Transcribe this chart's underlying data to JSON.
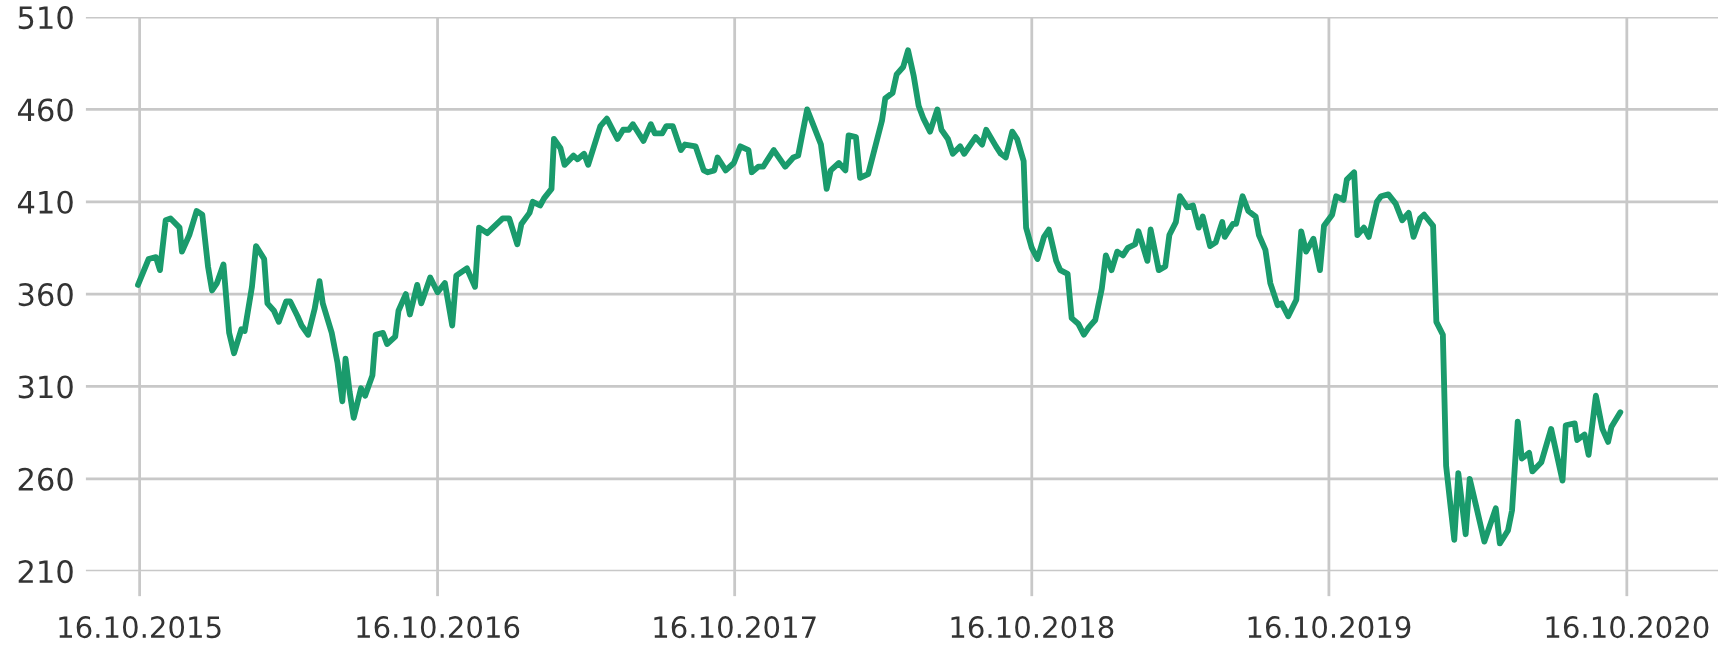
{
  "chart_data": {
    "type": "line",
    "x": [
      "2015-10-14",
      "2015-10-27",
      "2015-11-05",
      "2015-11-10",
      "2015-11-17",
      "2015-11-23",
      "2015-12-04",
      "2015-12-07",
      "2015-12-16",
      "2015-12-25",
      "2016-01-01",
      "2016-01-08",
      "2016-01-13",
      "2016-01-19",
      "2016-01-27",
      "2016-02-03",
      "2016-02-09",
      "2016-02-18",
      "2016-02-22",
      "2016-03-02",
      "2016-03-07",
      "2016-03-17",
      "2016-03-21",
      "2016-03-29",
      "2016-04-04",
      "2016-04-13",
      "2016-04-18",
      "2016-04-27",
      "2016-05-02",
      "2016-05-10",
      "2016-05-18",
      "2016-05-24",
      "2016-05-28",
      "2016-06-08",
      "2016-06-15",
      "2016-06-21",
      "2016-06-25",
      "2016-06-30",
      "2016-07-05",
      "2016-07-14",
      "2016-07-19",
      "2016-07-28",
      "2016-08-01",
      "2016-08-10",
      "2016-08-15",
      "2016-08-25",
      "2016-08-29",
      "2016-09-07",
      "2016-09-12",
      "2016-09-21",
      "2016-09-26",
      "2016-10-07",
      "2016-10-16",
      "2016-10-25",
      "2016-11-03",
      "2016-11-08",
      "2016-11-21",
      "2016-12-01",
      "2016-12-06",
      "2016-12-16",
      "2017-01-04",
      "2017-01-12",
      "2017-01-22",
      "2017-01-27",
      "2017-02-06",
      "2017-02-10",
      "2017-02-19",
      "2017-02-24",
      "2017-03-05",
      "2017-03-08",
      "2017-03-16",
      "2017-03-21",
      "2017-04-01",
      "2017-04-06",
      "2017-04-14",
      "2017-04-19",
      "2017-05-04",
      "2017-05-12",
      "2017-05-25",
      "2017-06-01",
      "2017-06-08",
      "2017-06-13",
      "2017-06-26",
      "2017-07-05",
      "2017-07-10",
      "2017-07-19",
      "2017-07-24",
      "2017-08-01",
      "2017-08-11",
      "2017-08-16",
      "2017-08-29",
      "2017-09-08",
      "2017-09-13",
      "2017-09-21",
      "2017-09-25",
      "2017-10-05",
      "2017-10-15",
      "2017-10-23",
      "2017-11-02",
      "2017-11-06",
      "2017-11-14",
      "2017-11-20",
      "2017-12-03",
      "2017-12-17",
      "2017-12-27",
      "2018-01-02",
      "2018-01-13",
      "2018-01-22",
      "2018-01-30",
      "2018-02-06",
      "2018-02-11",
      "2018-02-21",
      "2018-03-01",
      "2018-03-05",
      "2018-03-14",
      "2018-03-19",
      "2018-03-29",
      "2018-04-15",
      "2018-04-19",
      "2018-04-28",
      "2018-05-03",
      "2018-05-11",
      "2018-05-17",
      "2018-05-24",
      "2018-05-30",
      "2018-06-05",
      "2018-06-13",
      "2018-06-22",
      "2018-06-27",
      "2018-07-05",
      "2018-07-11",
      "2018-07-20",
      "2018-07-25",
      "2018-08-08",
      "2018-08-16",
      "2018-08-21",
      "2018-09-02",
      "2018-09-08",
      "2018-09-14",
      "2018-09-22",
      "2018-09-28",
      "2018-10-06",
      "2018-10-09",
      "2018-10-16",
      "2018-10-23",
      "2018-10-31",
      "2018-11-06",
      "2018-11-15",
      "2018-11-20",
      "2018-11-29",
      "2018-12-04",
      "2018-12-12",
      "2018-12-19",
      "2018-12-25",
      "2019-01-02",
      "2019-01-10",
      "2019-01-15",
      "2019-01-22",
      "2019-01-29",
      "2019-02-05",
      "2019-02-11",
      "2019-02-20",
      "2019-02-24",
      "2019-03-07",
      "2019-03-11",
      "2019-03-21",
      "2019-03-29",
      "2019-04-03",
      "2019-04-11",
      "2019-04-16",
      "2019-04-25",
      "2019-05-02",
      "2019-05-09",
      "2019-05-14",
      "2019-05-23",
      "2019-05-30",
      "2019-06-07",
      "2019-06-10",
      "2019-06-20",
      "2019-06-24",
      "2019-07-02",
      "2019-07-09",
      "2019-07-18",
      "2019-07-22",
      "2019-07-30",
      "2019-08-05",
      "2019-08-14",
      "2019-08-19",
      "2019-08-27",
      "2019-09-06",
      "2019-09-12",
      "2019-09-18",
      "2019-09-27",
      "2019-10-05",
      "2019-10-10",
      "2019-10-20",
      "2019-10-25",
      "2019-11-03",
      "2019-11-07",
      "2019-11-16",
      "2019-11-20",
      "2019-11-28",
      "2019-12-04",
      "2019-12-14",
      "2019-12-19",
      "2019-12-28",
      "2020-01-06",
      "2020-01-14",
      "2020-01-22",
      "2020-01-28",
      "2020-02-05",
      "2020-02-10",
      "2020-02-21",
      "2020-02-25",
      "2020-03-04",
      "2020-03-08",
      "2020-03-18",
      "2020-03-23",
      "2020-04-01",
      "2020-04-06",
      "2020-04-14",
      "2020-04-24",
      "2020-05-08",
      "2020-05-13",
      "2020-05-23",
      "2020-05-28",
      "2020-06-04",
      "2020-06-09",
      "2020-06-18",
      "2020-06-22",
      "2020-07-03",
      "2020-07-15",
      "2020-07-29",
      "2020-08-02",
      "2020-08-13",
      "2020-08-16",
      "2020-08-25",
      "2020-08-30",
      "2020-09-08",
      "2020-09-16",
      "2020-09-23",
      "2020-09-27",
      "2020-10-08"
    ],
    "series": [
      {
        "color": "#1a9b6c",
        "values": [
          365,
          379,
          380,
          373,
          400,
          401,
          396,
          383,
          392,
          405,
          403,
          375,
          362,
          366,
          376,
          339,
          328,
          341,
          340,
          364,
          386,
          379,
          355,
          351,
          345,
          356,
          356,
          348,
          343,
          338,
          352,
          367,
          355,
          339,
          323,
          302,
          325,
          307,
          293,
          309,
          305,
          316,
          338,
          339,
          333,
          337,
          351,
          360,
          349,
          365,
          355,
          369,
          361,
          366,
          343,
          370,
          374,
          364,
          396,
          393,
          401,
          401,
          387,
          398,
          404,
          410,
          408,
          412,
          417,
          444,
          439,
          430,
          435,
          433,
          436,
          430,
          451,
          455,
          444,
          449,
          449,
          452,
          443,
          452,
          447,
          447,
          451,
          451,
          438,
          441,
          440,
          427,
          426,
          427,
          434,
          427,
          431,
          440,
          438,
          426,
          429,
          429,
          438,
          429,
          434,
          435,
          460,
          450,
          441,
          417,
          427,
          431,
          427,
          446,
          445,
          423,
          425,
          454,
          466,
          469,
          479,
          483,
          492,
          478,
          462,
          455,
          448,
          460,
          449,
          444,
          436,
          440,
          436,
          445,
          441,
          449,
          440,
          436,
          434,
          448,
          444,
          432,
          396,
          385,
          379,
          391,
          395,
          378,
          373,
          371,
          347,
          344,
          338,
          342,
          346,
          363,
          381,
          373,
          383,
          381,
          385,
          387,
          394,
          378,
          395,
          373,
          375,
          392,
          399,
          413,
          407,
          408,
          396,
          402,
          386,
          388,
          399,
          391,
          398,
          398,
          413,
          405,
          402,
          392,
          384,
          366,
          354,
          355,
          348,
          357,
          394,
          383,
          390,
          373,
          397,
          403,
          413,
          411,
          422,
          426,
          392,
          396,
          391,
          410,
          413,
          414,
          409,
          400,
          404,
          391,
          401,
          403,
          397,
          345,
          338,
          267,
          227,
          263,
          230,
          260,
          245,
          226,
          244,
          225,
          232,
          243,
          291,
          271,
          274,
          264,
          269,
          287,
          259,
          289,
          290,
          281,
          284,
          273,
          305,
          287,
          280,
          288,
          296
        ]
      }
    ],
    "xlim": [
      "2015-08-11",
      "2021-02-05"
    ],
    "xticks": [
      {
        "value": "2015-10-16",
        "label": "16.10.2015"
      },
      {
        "value": "2016-10-16",
        "label": "16.10.2016"
      },
      {
        "value": "2017-10-16",
        "label": "16.10.2017"
      },
      {
        "value": "2018-10-16",
        "label": "16.10.2018"
      },
      {
        "value": "2019-10-16",
        "label": "16.10.2019"
      },
      {
        "value": "2020-10-16",
        "label": "16.10.2020"
      }
    ],
    "ylim": [
      210,
      510
    ],
    "yticks": [
      210,
      260,
      310,
      360,
      410,
      460,
      510
    ],
    "grid": true,
    "marker": "none",
    "line_style": "solid"
  }
}
